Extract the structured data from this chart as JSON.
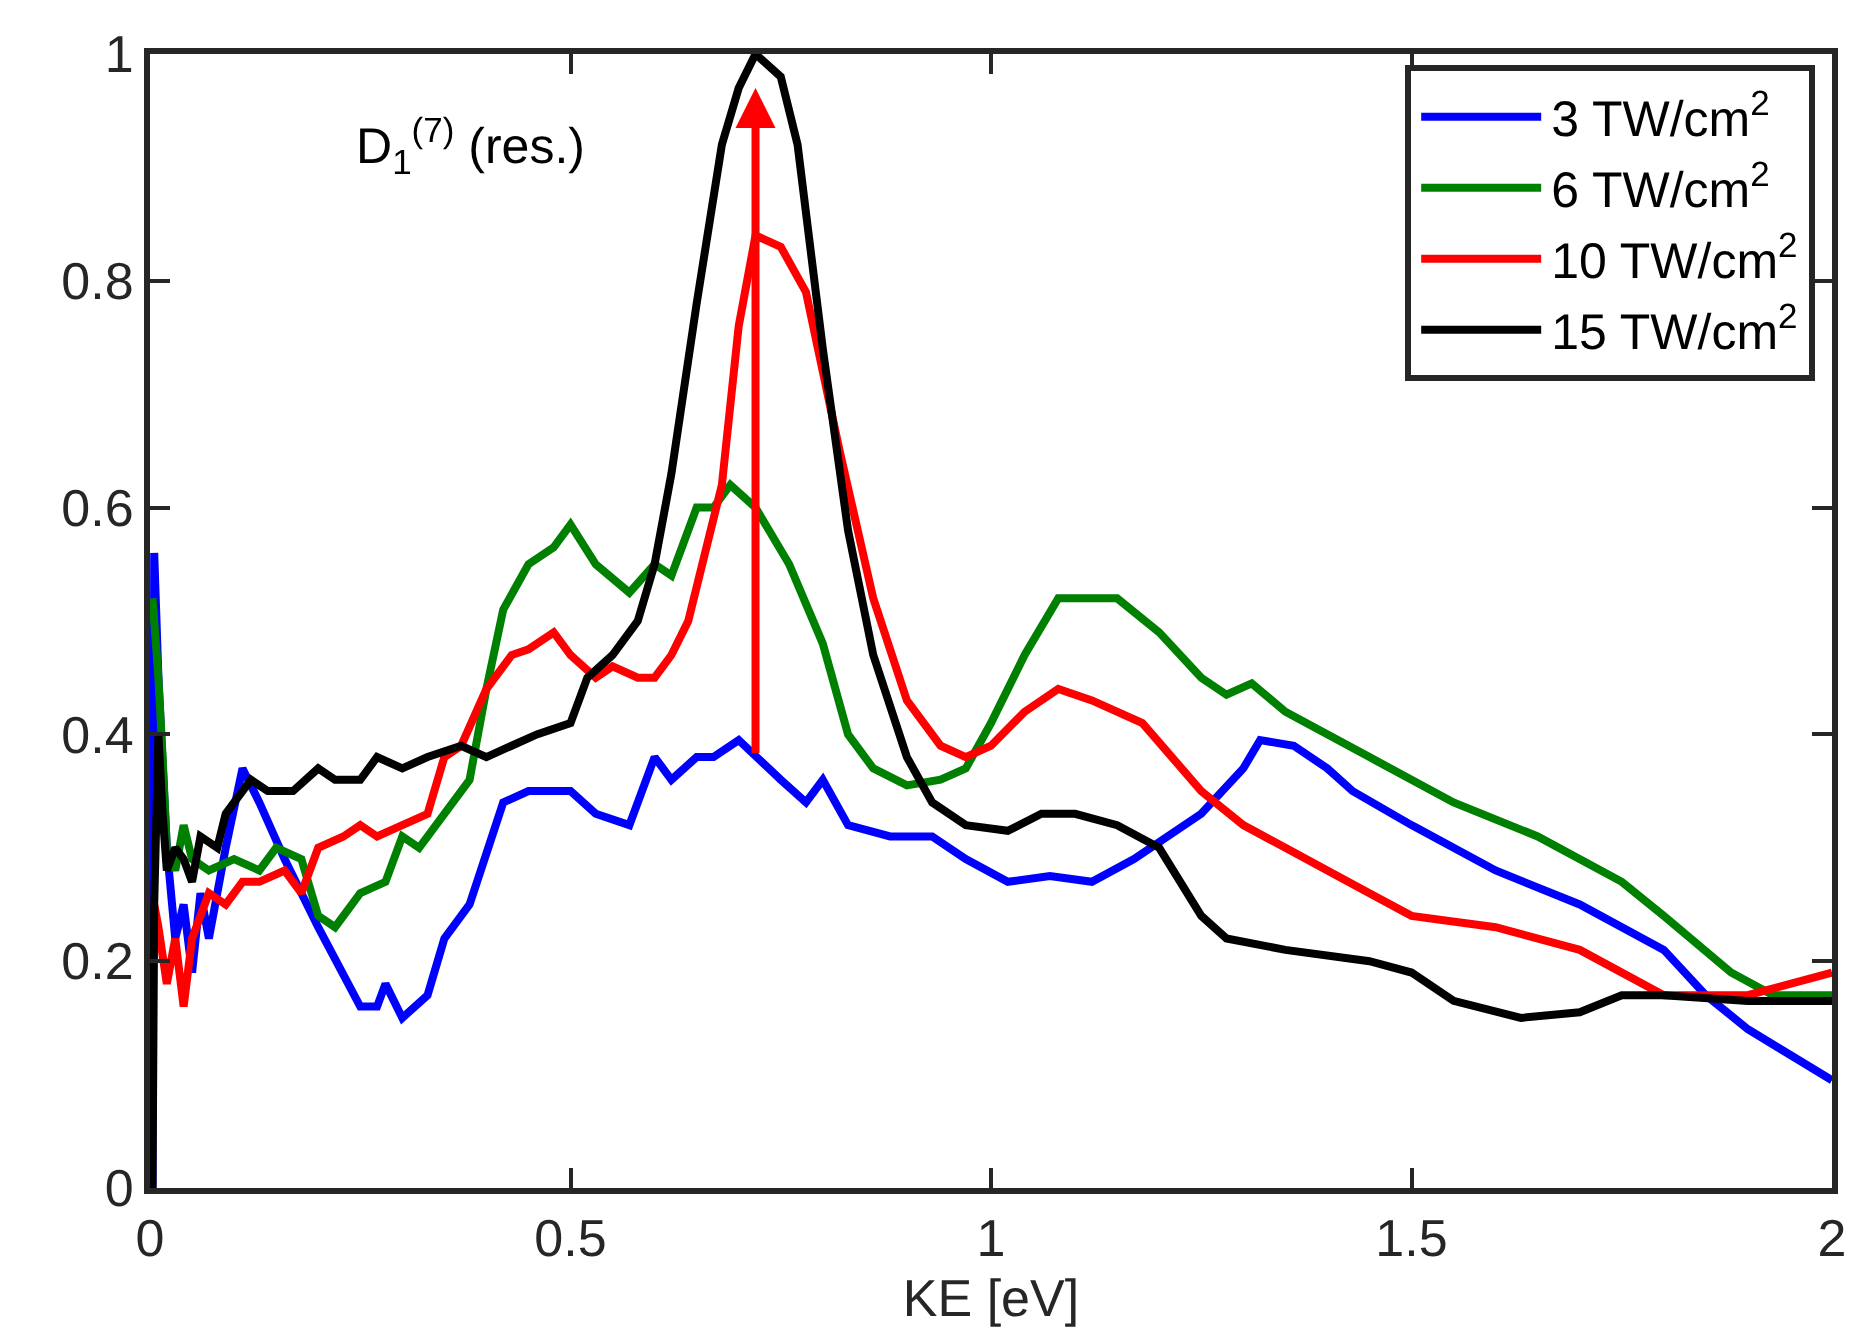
{
  "chart_data": {
    "type": "line",
    "xlabel": "KE [eV]",
    "xlim": [
      0,
      2
    ],
    "xticks": [
      0,
      0.5,
      1,
      1.5,
      2
    ],
    "ylim": [
      0,
      1
    ],
    "yticks": [
      0,
      0.2,
      0.4,
      0.6,
      0.8,
      1
    ],
    "legend": "top right",
    "line_style": "solid",
    "marker": "none",
    "annotations": [
      "D$_{1}$$^{(7)}$ (res.)"
    ],
    "series": [
      {
        "name": "3 TW/cm$^{2}$",
        "color": "#0000ff",
        "x": [
          0.003,
          0.005,
          0.01,
          0.02,
          0.03,
          0.04,
          0.05,
          0.06,
          0.07,
          0.09,
          0.11,
          0.13,
          0.16,
          0.2,
          0.25,
          0.27,
          0.28,
          0.3,
          0.33,
          0.35,
          0.38,
          0.42,
          0.45,
          0.48,
          0.5,
          0.53,
          0.57,
          0.6,
          0.62,
          0.65,
          0.67,
          0.7,
          0.75,
          0.78,
          0.8,
          0.83,
          0.88,
          0.93,
          0.97,
          1.02,
          1.07,
          1.12,
          1.17,
          1.25,
          1.3,
          1.32,
          1.36,
          1.4,
          1.43,
          1.5,
          1.6,
          1.7,
          1.8,
          1.85,
          1.9,
          2.0
        ],
        "values": [
          0.0,
          0.56,
          0.45,
          0.3,
          0.22,
          0.25,
          0.19,
          0.26,
          0.22,
          0.3,
          0.37,
          0.34,
          0.29,
          0.23,
          0.16,
          0.16,
          0.18,
          0.15,
          0.17,
          0.22,
          0.25,
          0.34,
          0.35,
          0.35,
          0.35,
          0.33,
          0.32,
          0.38,
          0.36,
          0.38,
          0.38,
          0.395,
          0.36,
          0.34,
          0.36,
          0.32,
          0.31,
          0.31,
          0.29,
          0.27,
          0.275,
          0.27,
          0.29,
          0.33,
          0.37,
          0.395,
          0.39,
          0.37,
          0.35,
          0.32,
          0.28,
          0.25,
          0.21,
          0.17,
          0.14,
          0.095
        ]
      },
      {
        "name": "6 TW/cm$^{2}$",
        "color": "#008000",
        "x": [
          0.003,
          0.01,
          0.015,
          0.02,
          0.03,
          0.04,
          0.05,
          0.07,
          0.1,
          0.13,
          0.15,
          0.18,
          0.2,
          0.22,
          0.25,
          0.28,
          0.3,
          0.32,
          0.35,
          0.38,
          0.4,
          0.42,
          0.45,
          0.48,
          0.5,
          0.53,
          0.57,
          0.6,
          0.62,
          0.65,
          0.67,
          0.69,
          0.72,
          0.76,
          0.8,
          0.83,
          0.86,
          0.9,
          0.94,
          0.97,
          1.0,
          1.04,
          1.08,
          1.15,
          1.2,
          1.25,
          1.28,
          1.31,
          1.35,
          1.45,
          1.55,
          1.65,
          1.75,
          1.8,
          1.88,
          1.93,
          2.0
        ],
        "values": [
          0.52,
          0.45,
          0.38,
          0.3,
          0.28,
          0.32,
          0.29,
          0.28,
          0.29,
          0.28,
          0.3,
          0.29,
          0.24,
          0.23,
          0.26,
          0.27,
          0.31,
          0.3,
          0.33,
          0.36,
          0.44,
          0.51,
          0.55,
          0.565,
          0.585,
          0.55,
          0.525,
          0.55,
          0.54,
          0.6,
          0.6,
          0.62,
          0.6,
          0.55,
          0.48,
          0.4,
          0.37,
          0.355,
          0.36,
          0.37,
          0.41,
          0.47,
          0.52,
          0.52,
          0.49,
          0.45,
          0.435,
          0.445,
          0.42,
          0.38,
          0.34,
          0.31,
          0.27,
          0.24,
          0.19,
          0.17,
          0.17
        ]
      },
      {
        "name": "10 TW/cm$^{2}$",
        "color": "#ff0000",
        "x": [
          0.005,
          0.01,
          0.02,
          0.03,
          0.04,
          0.05,
          0.07,
          0.09,
          0.11,
          0.13,
          0.16,
          0.18,
          0.2,
          0.23,
          0.25,
          0.27,
          0.3,
          0.33,
          0.35,
          0.37,
          0.4,
          0.43,
          0.45,
          0.48,
          0.5,
          0.53,
          0.55,
          0.58,
          0.6,
          0.62,
          0.64,
          0.68,
          0.7,
          0.72,
          0.75,
          0.78,
          0.82,
          0.86,
          0.9,
          0.94,
          0.97,
          1.0,
          1.04,
          1.08,
          1.12,
          1.18,
          1.25,
          1.3,
          1.35,
          1.4,
          1.45,
          1.5,
          1.6,
          1.7,
          1.8,
          1.9,
          2.0
        ],
        "values": [
          0.25,
          0.23,
          0.18,
          0.22,
          0.16,
          0.22,
          0.26,
          0.25,
          0.27,
          0.27,
          0.28,
          0.26,
          0.3,
          0.31,
          0.32,
          0.31,
          0.32,
          0.33,
          0.38,
          0.39,
          0.44,
          0.47,
          0.475,
          0.49,
          0.47,
          0.45,
          0.46,
          0.45,
          0.45,
          0.47,
          0.5,
          0.62,
          0.76,
          0.84,
          0.83,
          0.79,
          0.65,
          0.52,
          0.43,
          0.39,
          0.38,
          0.39,
          0.42,
          0.44,
          0.43,
          0.41,
          0.35,
          0.32,
          0.3,
          0.28,
          0.26,
          0.24,
          0.23,
          0.21,
          0.17,
          0.17,
          0.19
        ]
      },
      {
        "name": "15 TW/cm$^{2}$",
        "color": "#000000",
        "x": [
          0.003,
          0.005,
          0.01,
          0.015,
          0.02,
          0.03,
          0.04,
          0.05,
          0.06,
          0.08,
          0.09,
          0.1,
          0.12,
          0.14,
          0.17,
          0.2,
          0.22,
          0.25,
          0.27,
          0.3,
          0.33,
          0.37,
          0.4,
          0.43,
          0.46,
          0.5,
          0.52,
          0.55,
          0.58,
          0.6,
          0.62,
          0.65,
          0.68,
          0.7,
          0.72,
          0.75,
          0.77,
          0.8,
          0.83,
          0.86,
          0.9,
          0.93,
          0.97,
          1.02,
          1.06,
          1.1,
          1.15,
          1.2,
          1.25,
          1.28,
          1.35,
          1.45,
          1.5,
          1.55,
          1.63,
          1.7,
          1.75,
          1.8,
          1.9,
          2.0
        ],
        "values": [
          0.0,
          0.25,
          0.4,
          0.33,
          0.28,
          0.3,
          0.29,
          0.27,
          0.31,
          0.3,
          0.33,
          0.34,
          0.36,
          0.35,
          0.35,
          0.37,
          0.36,
          0.36,
          0.38,
          0.37,
          0.38,
          0.39,
          0.38,
          0.39,
          0.4,
          0.41,
          0.45,
          0.47,
          0.5,
          0.55,
          0.63,
          0.78,
          0.92,
          0.97,
          1.0,
          0.98,
          0.92,
          0.74,
          0.58,
          0.47,
          0.38,
          0.34,
          0.32,
          0.315,
          0.33,
          0.33,
          0.32,
          0.3,
          0.24,
          0.22,
          0.21,
          0.2,
          0.19,
          0.165,
          0.15,
          0.155,
          0.17,
          0.17,
          0.165,
          0.165
        ]
      }
    ]
  }
}
